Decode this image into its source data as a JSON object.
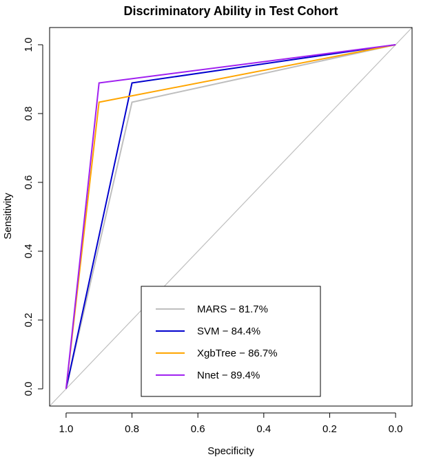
{
  "chart_data": {
    "type": "line",
    "title": "Discriminatory Ability in Test Cohort",
    "xlabel": "Specificity",
    "ylabel": "Sensitivity",
    "x_axis_reversed": true,
    "xlim": [
      1.05,
      -0.05
    ],
    "ylim": [
      -0.05,
      1.05
    ],
    "x_ticks": [
      1.0,
      0.8,
      0.6,
      0.4,
      0.2,
      0.0
    ],
    "x_tick_labels": [
      "1.0",
      "0.8",
      "0.6",
      "0.4",
      "0.2",
      "0.0"
    ],
    "y_ticks": [
      0.0,
      0.2,
      0.4,
      0.6,
      0.8,
      1.0
    ],
    "y_tick_labels": [
      "0.0",
      "0.2",
      "0.4",
      "0.6",
      "0.8",
      "1.0"
    ],
    "reference_line": {
      "from": [
        1.05,
        -0.05
      ],
      "to": [
        -0.05,
        1.05
      ],
      "color": "#BEBEBE"
    },
    "legend_position": "bottom-center",
    "series": [
      {
        "name": "MARS − 81.7%",
        "color": "#BEBEBE",
        "x": [
          1.0,
          0.8,
          0.0
        ],
        "y": [
          0.0,
          0.833,
          1.0
        ]
      },
      {
        "name": "SVM − 84.4%",
        "color": "#0000CD",
        "x": [
          1.0,
          0.8,
          0.0
        ],
        "y": [
          0.0,
          0.889,
          1.0
        ]
      },
      {
        "name": "XgbTree − 86.7%",
        "color": "#FFA500",
        "x": [
          1.0,
          0.9,
          0.0
        ],
        "y": [
          0.0,
          0.833,
          1.0
        ]
      },
      {
        "name": "Nnet − 89.4%",
        "color": "#A020F0",
        "x": [
          1.0,
          0.9,
          0.0
        ],
        "y": [
          0.0,
          0.889,
          1.0
        ]
      }
    ]
  }
}
